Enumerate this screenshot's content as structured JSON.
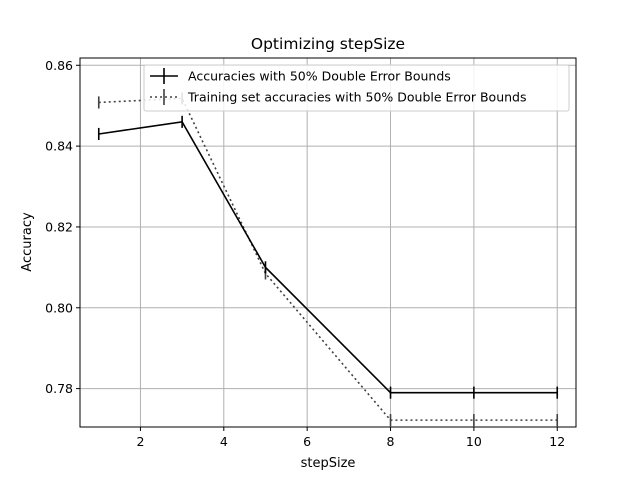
{
  "chart_data": {
    "type": "line",
    "title": "Optimizing stepSize",
    "xlabel": "stepSize",
    "ylabel": "Accuracy",
    "xlim": [
      0.55,
      12.45
    ],
    "ylim": [
      0.7705,
      0.8618
    ],
    "xticks": [
      2,
      4,
      6,
      8,
      10,
      12
    ],
    "yticks": [
      0.78,
      0.8,
      0.82,
      0.84,
      0.86
    ],
    "xtick_labels": [
      "2",
      "4",
      "6",
      "8",
      "10",
      "12"
    ],
    "ytick_labels": [
      "0.78",
      "0.80",
      "0.82",
      "0.84",
      "0.86"
    ],
    "grid": true,
    "legend_position": "top-right",
    "series": [
      {
        "name": "Accuracies with 50% Double Error Bounds",
        "x": [
          1,
          3,
          5,
          8,
          10,
          12
        ],
        "y": [
          0.843,
          0.846,
          0.81,
          0.779,
          0.779,
          0.779
        ],
        "err": [
          0.0015,
          0.0015,
          0.0015,
          0.0015,
          0.0015,
          0.0015
        ],
        "color": "#000000",
        "style": "solid"
      },
      {
        "name": "Training set accuracies with 50% Double Error Bounds",
        "x": [
          1,
          3,
          5,
          8,
          10,
          12
        ],
        "y": [
          0.8508,
          0.8518,
          0.8085,
          0.7722,
          0.7722,
          0.7722
        ],
        "err": [
          0.0015,
          0.0015,
          0.0015,
          0.0015,
          0.0015,
          0.0015
        ],
        "color": "#404040",
        "style": "dotted"
      }
    ]
  }
}
